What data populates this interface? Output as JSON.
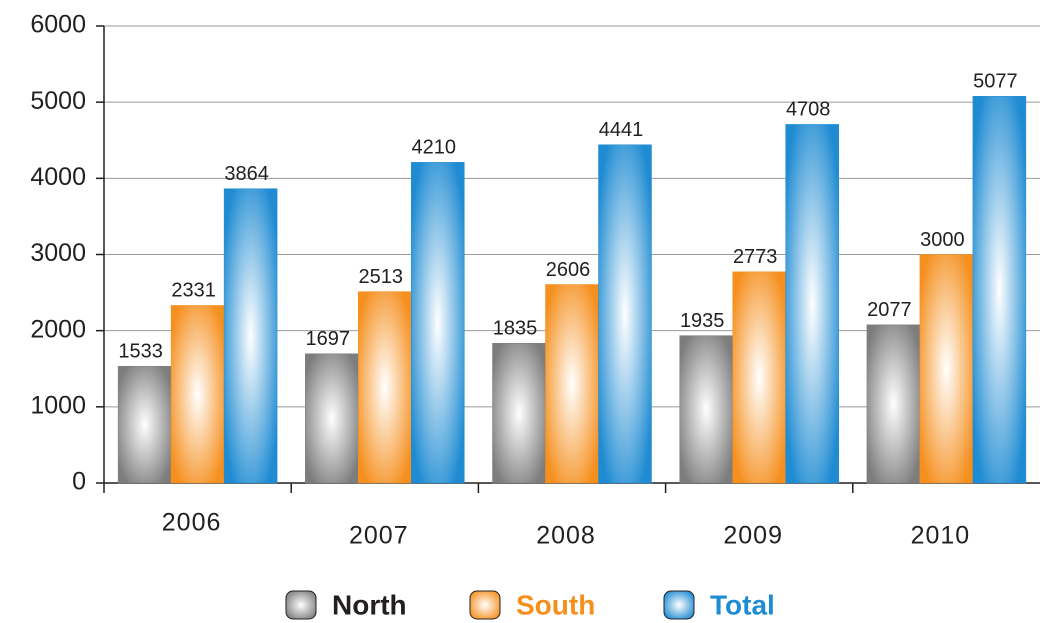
{
  "chart_data": {
    "type": "bar",
    "categories": [
      "2006",
      "2007",
      "2008",
      "2009",
      "2010"
    ],
    "series": [
      {
        "name": "North",
        "color": "#7d7d7d",
        "values": [
          1533,
          1697,
          1835,
          1935,
          2077
        ]
      },
      {
        "name": "South",
        "color": "#f5901f",
        "values": [
          2331,
          2513,
          2606,
          2773,
          3000
        ]
      },
      {
        "name": "Total",
        "color": "#1e8bd2",
        "values": [
          3864,
          4210,
          4441,
          4708,
          5077
        ]
      }
    ],
    "ylim": [
      0,
      6000
    ],
    "yticks": [
      0,
      1000,
      2000,
      3000,
      4000,
      5000,
      6000
    ],
    "grid": true,
    "legend": "bottom"
  }
}
